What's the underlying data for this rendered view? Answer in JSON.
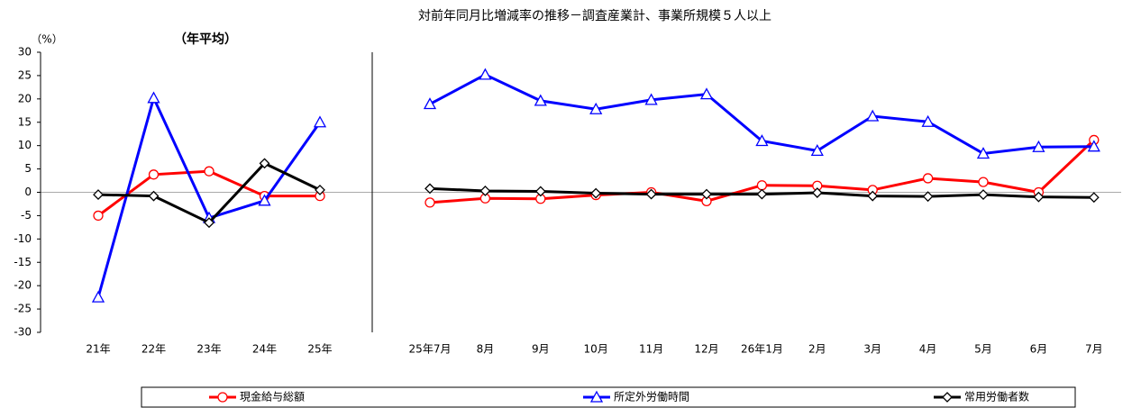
{
  "chart_data": [
    {
      "type": "line",
      "title": "対前年同月比増減率の推移－調査産業計、事業所規模５人以上",
      "subtitle": "（年平均）",
      "ylabel": "（%）",
      "categories": [
        "21年",
        "22年",
        "23年",
        "24年",
        "25年"
      ],
      "ylim": [
        -30,
        30
      ],
      "yticks": [
        -30,
        -25,
        -20,
        -15,
        -10,
        -5,
        0,
        5,
        10,
        15,
        20,
        25,
        30
      ],
      "legend": "bottom",
      "series": [
        {
          "name": "現金給与総額",
          "color": "#ff0000",
          "marker": "circle",
          "values": [
            -5.0,
            3.8,
            4.5,
            -0.8,
            -0.8
          ]
        },
        {
          "name": "所定外労働時間",
          "color": "#0000ff",
          "marker": "triangle",
          "values": [
            -22.5,
            20.2,
            -5.5,
            -1.8,
            15.0
          ]
        },
        {
          "name": "常用労働者数",
          "color": "#000000",
          "marker": "diamond",
          "values": [
            -0.5,
            -0.8,
            -6.5,
            6.2,
            0.5
          ]
        }
      ]
    },
    {
      "type": "line",
      "categories": [
        "25年7月",
        "8月",
        "9月",
        "10月",
        "11月",
        "12月",
        "26年1月",
        "2月",
        "3月",
        "4月",
        "5月",
        "6月",
        "7月"
      ],
      "series": [
        {
          "color": "#ff0000",
          "values": [
            -2.2,
            -1.3,
            -1.4,
            -0.6,
            0.0,
            -1.9,
            1.5,
            1.4,
            0.5,
            3.0,
            2.2,
            0.0,
            11.2
          ]
        },
        {
          "color": "#0000ff",
          "values": [
            18.9,
            25.2,
            19.6,
            17.8,
            19.8,
            21.0,
            11.0,
            8.9,
            16.3,
            15.1,
            8.3,
            9.7,
            9.8
          ]
        },
        {
          "color": "#000000",
          "values": [
            0.8,
            0.3,
            0.2,
            -0.2,
            -0.4,
            -0.4,
            -0.4,
            -0.1,
            -0.8,
            -0.9,
            -0.5,
            -1.0,
            -1.1
          ]
        }
      ]
    }
  ]
}
